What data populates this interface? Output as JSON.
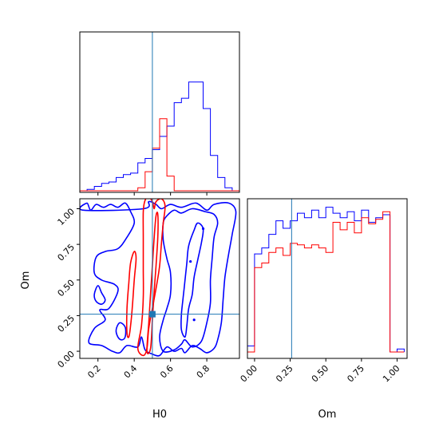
{
  "chart_data": {
    "type": "corner",
    "parameters": [
      "H0",
      "Om"
    ],
    "truth": {
      "H0": 0.5,
      "Om": 0.26
    },
    "colors": {
      "blue": "#0000ff",
      "red": "#ff0000",
      "truth": "#1f77b4"
    },
    "axes": {
      "H0": {
        "label": "H0",
        "range": [
          0.1,
          0.98
        ],
        "ticks": [
          0.2,
          0.4,
          0.6,
          0.8
        ],
        "tick_labels": [
          "0.2",
          "0.4",
          "0.6",
          "0.8"
        ]
      },
      "Om": {
        "label": "Om",
        "range": [
          -0.05,
          1.07
        ],
        "ticks": [
          0.0,
          0.25,
          0.5,
          0.75,
          1.0
        ],
        "tick_labels": [
          "0.00",
          "0.25",
          "0.50",
          "0.75",
          "1.00"
        ]
      }
    },
    "hist_H0": {
      "edges": [
        0.1,
        0.14,
        0.18,
        0.22,
        0.26,
        0.3,
        0.34,
        0.38,
        0.42,
        0.46,
        0.5,
        0.54,
        0.58,
        0.62,
        0.66,
        0.7,
        0.74,
        0.78,
        0.82,
        0.86,
        0.9,
        0.94,
        0.98
      ],
      "series": [
        {
          "color": "blue",
          "values": [
            0.0,
            0.01,
            0.03,
            0.05,
            0.06,
            0.09,
            0.11,
            0.12,
            0.19,
            0.22,
            0.28,
            0.37,
            0.44,
            0.6,
            0.63,
            0.74,
            0.74,
            0.56,
            0.24,
            0.09,
            0.02,
            0.0
          ]
        },
        {
          "color": "red",
          "values": [
            0.0,
            0.0,
            0.0,
            0.0,
            0.0,
            0.0,
            0.0,
            0.0,
            0.02,
            0.13,
            0.29,
            0.49,
            0.1,
            0.0,
            0.0,
            0.0,
            0.0,
            0.0,
            0.0,
            0.0,
            0.0,
            0.0
          ]
        }
      ]
    },
    "hist_Om": {
      "edges": [
        -0.05,
        0.0,
        0.05,
        0.1,
        0.15,
        0.2,
        0.25,
        0.3,
        0.35,
        0.4,
        0.45,
        0.5,
        0.55,
        0.6,
        0.65,
        0.7,
        0.75,
        0.8,
        0.85,
        0.9,
        0.95,
        1.0,
        1.05
      ],
      "series": [
        {
          "color": "blue",
          "values": [
            0.04,
            0.65,
            0.69,
            0.78,
            0.87,
            0.82,
            0.87,
            0.92,
            0.89,
            0.94,
            0.89,
            0.96,
            0.92,
            0.89,
            0.93,
            0.87,
            0.94,
            0.86,
            0.89,
            0.91,
            0.0,
            0.02
          ]
        },
        {
          "color": "red",
          "values": [
            0.0,
            0.56,
            0.59,
            0.66,
            0.69,
            0.64,
            0.72,
            0.71,
            0.69,
            0.71,
            0.69,
            0.66,
            0.86,
            0.81,
            0.86,
            0.79,
            0.89,
            0.85,
            0.88,
            0.93,
            0.0,
            0.0
          ]
        }
      ]
    },
    "contours": [
      {
        "color": "blue",
        "paths": [
          [
            [
              0.12,
              0.99
            ],
            [
              0.14,
              1.04
            ],
            [
              0.16,
              0.99
            ],
            [
              0.19,
              1.03
            ],
            [
              0.23,
              1.01
            ],
            [
              0.27,
              1.03
            ],
            [
              0.31,
              1.01
            ],
            [
              0.35,
              1.04
            ],
            [
              0.38,
              0.98
            ],
            [
              0.4,
              0.9
            ],
            [
              0.36,
              0.8
            ],
            [
              0.31,
              0.72
            ],
            [
              0.24,
              0.7
            ],
            [
              0.19,
              0.66
            ],
            [
              0.18,
              0.55
            ],
            [
              0.22,
              0.5
            ],
            [
              0.29,
              0.47
            ],
            [
              0.31,
              0.42
            ],
            [
              0.26,
              0.3
            ],
            [
              0.21,
              0.29
            ],
            [
              0.24,
              0.22
            ],
            [
              0.18,
              0.16
            ],
            [
              0.15,
              0.06
            ],
            [
              0.22,
              0.04
            ],
            [
              0.28,
              0.0
            ],
            [
              0.32,
              -0.01
            ],
            [
              0.36,
              0.04
            ],
            [
              0.42,
              0.03
            ],
            [
              0.44,
              0.1
            ],
            [
              0.46,
              0.01
            ],
            [
              0.5,
              -0.02
            ],
            [
              0.54,
              -0.03
            ],
            [
              0.58,
              0.03
            ],
            [
              0.62,
              0.0
            ],
            [
              0.66,
              0.02
            ],
            [
              0.68,
              -0.01
            ],
            [
              0.72,
              0.04
            ],
            [
              0.76,
              0.02
            ],
            [
              0.8,
              -0.01
            ],
            [
              0.84,
              0.02
            ],
            [
              0.86,
              0.08
            ],
            [
              0.88,
              0.2
            ],
            [
              0.89,
              0.36
            ],
            [
              0.9,
              0.52
            ],
            [
              0.92,
              0.68
            ],
            [
              0.94,
              0.82
            ],
            [
              0.96,
              0.98
            ],
            [
              0.92,
              1.04
            ],
            [
              0.84,
              1.03
            ],
            [
              0.8,
              0.99
            ],
            [
              0.74,
              1.04
            ],
            [
              0.66,
              1.01
            ],
            [
              0.6,
              1.03
            ],
            [
              0.55,
              1.0
            ],
            [
              0.52,
              1.03
            ],
            [
              0.48,
              1.05
            ],
            [
              0.45,
              1.0
            ]
          ],
          [
            [
              0.58,
              0.95
            ],
            [
              0.62,
              0.99
            ],
            [
              0.66,
              0.97
            ],
            [
              0.72,
              1.0
            ],
            [
              0.79,
              0.98
            ],
            [
              0.84,
              0.96
            ],
            [
              0.86,
              0.9
            ],
            [
              0.84,
              0.8
            ],
            [
              0.83,
              0.66
            ],
            [
              0.82,
              0.5
            ],
            [
              0.82,
              0.34
            ],
            [
              0.8,
              0.2
            ],
            [
              0.77,
              0.07
            ],
            [
              0.72,
              0.03
            ],
            [
              0.68,
              0.08
            ],
            [
              0.66,
              0.05
            ],
            [
              0.62,
              0.01
            ],
            [
              0.56,
              0.0
            ],
            [
              0.54,
              0.1
            ],
            [
              0.56,
              0.22
            ],
            [
              0.58,
              0.3
            ],
            [
              0.6,
              0.4
            ],
            [
              0.6,
              0.55
            ],
            [
              0.58,
              0.65
            ],
            [
              0.56,
              0.78
            ],
            [
              0.56,
              0.9
            ]
          ],
          [
            [
              0.73,
              0.85
            ],
            [
              0.75,
              0.9
            ],
            [
              0.78,
              0.86
            ],
            [
              0.77,
              0.76
            ],
            [
              0.75,
              0.64
            ],
            [
              0.73,
              0.52
            ],
            [
              0.72,
              0.4
            ],
            [
              0.7,
              0.3
            ],
            [
              0.69,
              0.18
            ],
            [
              0.68,
              0.1
            ],
            [
              0.66,
              0.15
            ],
            [
              0.66,
              0.26
            ],
            [
              0.67,
              0.38
            ],
            [
              0.68,
              0.5
            ],
            [
              0.69,
              0.62
            ],
            [
              0.7,
              0.74
            ]
          ],
          [
            [
              0.18,
              0.4
            ],
            [
              0.2,
              0.46
            ],
            [
              0.22,
              0.41
            ],
            [
              0.24,
              0.36
            ],
            [
              0.22,
              0.33
            ],
            [
              0.19,
              0.35
            ]
          ],
          [
            [
              0.3,
              0.15
            ],
            [
              0.32,
              0.2
            ],
            [
              0.35,
              0.17
            ],
            [
              0.35,
              0.1
            ],
            [
              0.33,
              0.08
            ],
            [
              0.31,
              0.1
            ]
          ]
        ]
      },
      {
        "color": "red",
        "paths": [
          [
            [
              0.42,
              0.02
            ],
            [
              0.44,
              0.18
            ],
            [
              0.45,
              0.38
            ],
            [
              0.45,
              0.58
            ],
            [
              0.45,
              0.8
            ],
            [
              0.45,
              0.98
            ],
            [
              0.46,
              1.06
            ],
            [
              0.48,
              1.08
            ],
            [
              0.5,
              1.05
            ],
            [
              0.51,
              1.0
            ],
            [
              0.52,
              1.05
            ],
            [
              0.55,
              1.07
            ],
            [
              0.57,
              1.02
            ],
            [
              0.56,
              0.9
            ],
            [
              0.55,
              0.76
            ],
            [
              0.54,
              0.6
            ],
            [
              0.52,
              0.44
            ],
            [
              0.5,
              0.3
            ],
            [
              0.48,
              0.16
            ],
            [
              0.47,
              0.02
            ],
            [
              0.45,
              -0.03
            ]
          ],
          [
            [
              0.47,
              0.0
            ],
            [
              0.48,
              0.2
            ],
            [
              0.49,
              0.4
            ],
            [
              0.5,
              0.6
            ],
            [
              0.51,
              0.8
            ],
            [
              0.52,
              0.95
            ],
            [
              0.53,
              0.96
            ],
            [
              0.53,
              0.8
            ],
            [
              0.52,
              0.6
            ],
            [
              0.51,
              0.42
            ],
            [
              0.5,
              0.22
            ],
            [
              0.49,
              0.02
            ]
          ],
          [
            [
              0.36,
              0.13
            ],
            [
              0.36,
              0.3
            ],
            [
              0.37,
              0.48
            ],
            [
              0.38,
              0.62
            ],
            [
              0.4,
              0.7
            ],
            [
              0.41,
              0.65
            ],
            [
              0.4,
              0.5
            ],
            [
              0.39,
              0.32
            ],
            [
              0.38,
              0.18
            ],
            [
              0.37,
              0.1
            ]
          ]
        ]
      }
    ],
    "markers": [
      {
        "color": "blue",
        "x": 0.73,
        "y": 0.22
      },
      {
        "color": "blue",
        "x": 0.71,
        "y": 0.63
      },
      {
        "color": "blue",
        "x": 0.78,
        "y": 0.86
      }
    ]
  }
}
